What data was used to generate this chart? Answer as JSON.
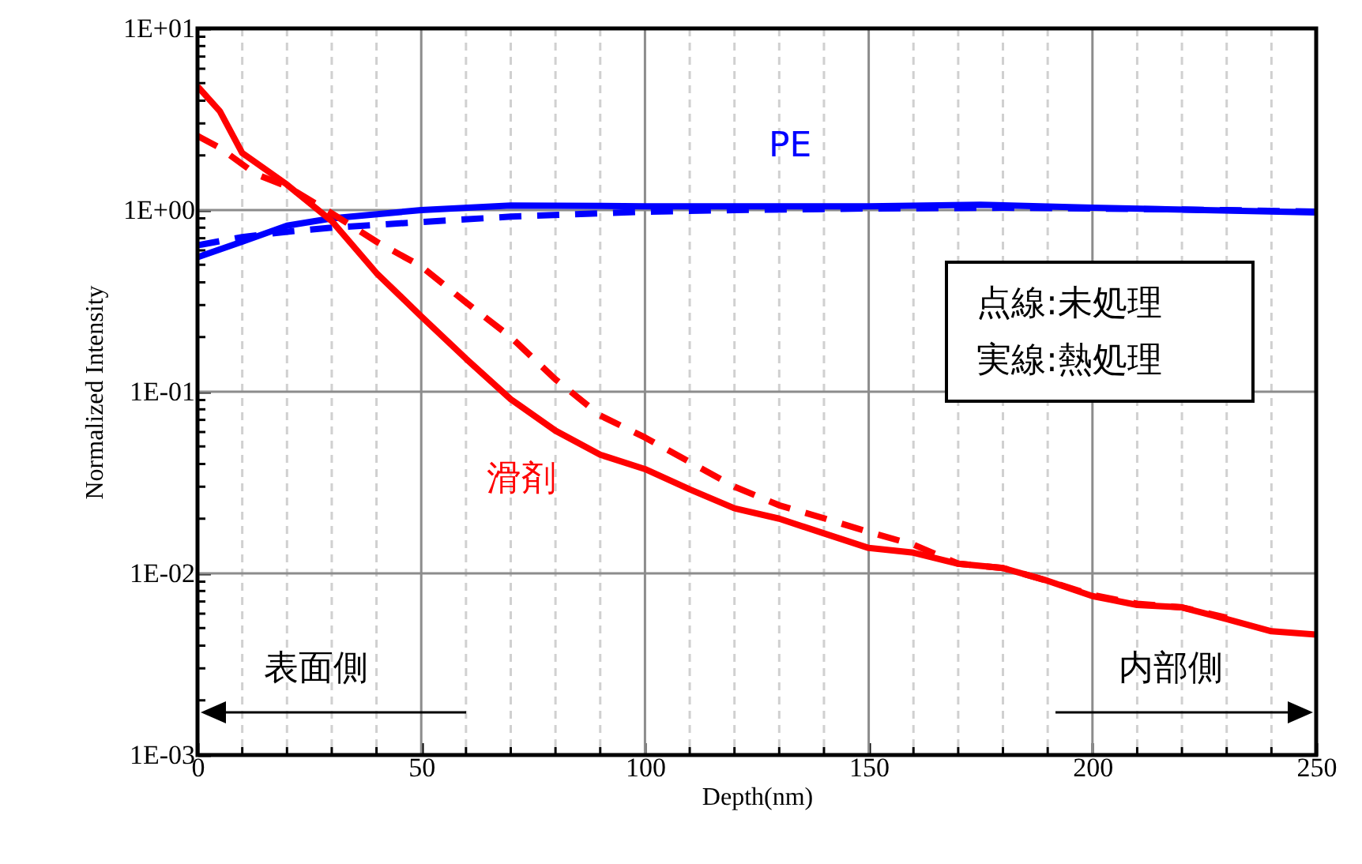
{
  "chart_data": {
    "type": "line",
    "xlabel": "Depth(nm)",
    "ylabel": "Normalized Intensity",
    "log": "y",
    "grid": true,
    "xlim": [
      0,
      250
    ],
    "ylim": [
      0.001,
      10
    ],
    "xticks": [
      0,
      {
        "value": 10,
        "label": null
      },
      {
        "value": 20,
        "label": null
      },
      {
        "value": 30,
        "label": null
      },
      {
        "value": 40,
        "label": null
      },
      50,
      {
        "value": 60,
        "label": null
      },
      {
        "value": 70,
        "label": null
      },
      {
        "value": 80,
        "label": null
      },
      {
        "value": 90,
        "label": null
      },
      100,
      {
        "value": 110,
        "label": null
      },
      {
        "value": 120,
        "label": null
      },
      {
        "value": 130,
        "label": null
      },
      {
        "value": 140,
        "label": null
      },
      150,
      {
        "value": 160,
        "label": null
      },
      {
        "value": 170,
        "label": null
      },
      {
        "value": 180,
        "label": null
      },
      {
        "value": 190,
        "label": null
      },
      200,
      {
        "value": 210,
        "label": null
      },
      {
        "value": 220,
        "label": null
      },
      {
        "value": 230,
        "label": null
      },
      {
        "value": 240,
        "label": null
      },
      250
    ],
    "yticks": [
      {
        "value": 0.001,
        "label": "1E-03"
      },
      {
        "value": 0.002,
        "label": null
      },
      {
        "value": 0.003,
        "label": null
      },
      {
        "value": 0.004,
        "label": null
      },
      {
        "value": 0.005,
        "label": null
      },
      {
        "value": 0.006,
        "label": null
      },
      {
        "value": 0.007,
        "label": null
      },
      {
        "value": 0.008,
        "label": null
      },
      {
        "value": 0.009,
        "label": null
      },
      {
        "value": 0.01,
        "label": "1E-02"
      },
      {
        "value": 0.02,
        "label": null
      },
      {
        "value": 0.03,
        "label": null
      },
      {
        "value": 0.04,
        "label": null
      },
      {
        "value": 0.05,
        "label": null
      },
      {
        "value": 0.06,
        "label": null
      },
      {
        "value": 0.07,
        "label": null
      },
      {
        "value": 0.08,
        "label": null
      },
      {
        "value": 0.09,
        "label": null
      },
      {
        "value": 0.1,
        "label": "1E-01"
      },
      {
        "value": 0.2,
        "label": null
      },
      {
        "value": 0.3,
        "label": null
      },
      {
        "value": 0.4,
        "label": null
      },
      {
        "value": 0.5,
        "label": null
      },
      {
        "value": 0.6,
        "label": null
      },
      {
        "value": 0.7,
        "label": null
      },
      {
        "value": 0.8,
        "label": null
      },
      {
        "value": 0.9,
        "label": null
      },
      {
        "value": 1,
        "label": "1E+00"
      },
      {
        "value": 2,
        "label": null
      },
      {
        "value": 3,
        "label": null
      },
      {
        "value": 4,
        "label": null
      },
      {
        "value": 5,
        "label": null
      },
      {
        "value": 6,
        "label": null
      },
      {
        "value": 7,
        "label": null
      },
      {
        "value": 8,
        "label": null
      },
      {
        "value": 9,
        "label": null
      },
      {
        "value": 10,
        "label": "1E+01"
      }
    ],
    "series": [
      {
        "color": "#0000ff",
        "line_style": "solid",
        "x": [
          0,
          10,
          20,
          30,
          50,
          70,
          100,
          150,
          175,
          200,
          225,
          250
        ],
        "values": [
          0.55,
          0.67,
          0.82,
          0.9,
          1.0,
          1.06,
          1.05,
          1.05,
          1.07,
          1.03,
          1.0,
          0.97
        ]
      },
      {
        "color": "#0000ff",
        "line_style": "dashed",
        "x": [
          0,
          10,
          20,
          30,
          50,
          70,
          90,
          100,
          120,
          150,
          180,
          200,
          230,
          250
        ],
        "values": [
          0.64,
          0.71,
          0.76,
          0.8,
          0.86,
          0.92,
          0.96,
          0.98,
          1.0,
          1.02,
          1.03,
          1.02,
          1.0,
          0.98
        ]
      },
      {
        "color": "#ff0000",
        "line_style": "solid",
        "x": [
          0,
          5,
          10,
          20,
          30,
          40,
          50,
          60,
          70,
          80,
          90,
          100,
          110,
          120,
          130,
          140,
          150,
          160,
          170,
          180,
          190,
          200,
          210,
          220,
          230,
          240,
          250
        ],
        "values": [
          4.8,
          3.5,
          2.06,
          1.38,
          0.87,
          0.45,
          0.26,
          0.152,
          0.091,
          0.061,
          0.045,
          0.0375,
          0.029,
          0.0228,
          0.02,
          0.0166,
          0.0138,
          0.013,
          0.0113,
          0.0107,
          0.0091,
          0.0075,
          0.0067,
          0.0065,
          0.0056,
          0.0048,
          0.0046
        ]
      },
      {
        "color": "#ff0000",
        "line_style": "dashed",
        "x": [
          0,
          5,
          13,
          20,
          30,
          40,
          50,
          60,
          70,
          80,
          90,
          100,
          110,
          120,
          130,
          140,
          150,
          160,
          170,
          180,
          190,
          200,
          210,
          220,
          230
        ],
        "values": [
          2.56,
          2.2,
          1.58,
          1.35,
          0.96,
          0.67,
          0.49,
          0.31,
          0.2,
          0.117,
          0.074,
          0.056,
          0.041,
          0.03,
          0.0237,
          0.0201,
          0.0169,
          0.0144,
          0.0113,
          0.0107,
          0.0091,
          0.0076,
          0.0068,
          0.0065,
          0.0057
        ]
      }
    ],
    "annotations": [
      "点線:未処理",
      "実線:熱処理",
      "表面側",
      "内部側",
      "PE",
      "滑剤"
    ]
  }
}
